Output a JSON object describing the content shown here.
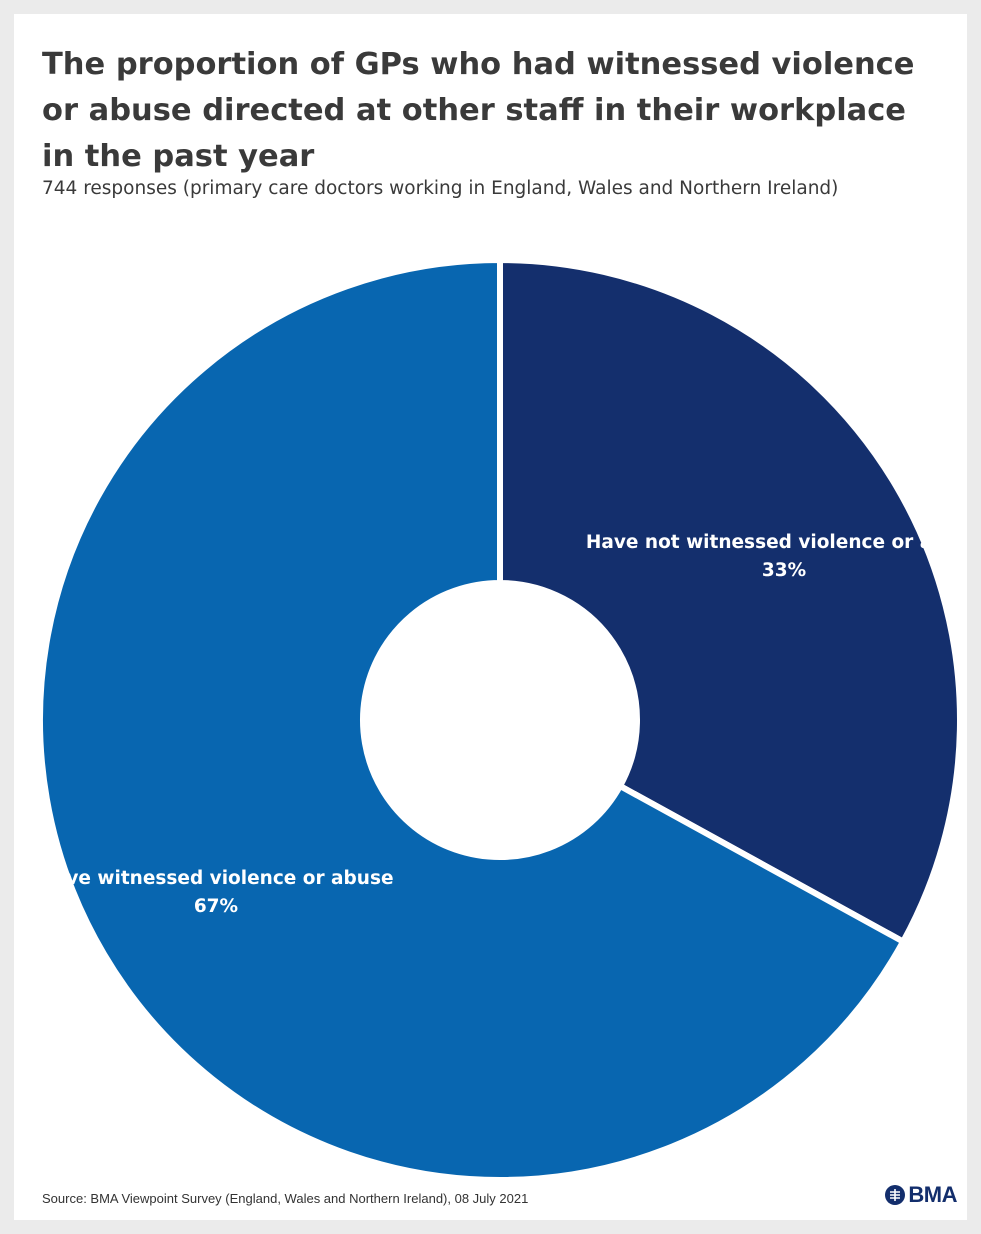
{
  "chart_data": {
    "type": "pie",
    "style": "donut",
    "title": "The proportion of GPs who had witnessed violence or abuse directed at other staff in their workplace in the past year",
    "subtitle": "744 responses (primary care doctors working in England, Wales and Northern Ireland)",
    "slices": [
      {
        "label": "Have not witnessed violence or abuse",
        "value": 33,
        "display": "33%",
        "color": "#142f6d"
      },
      {
        "label": "Have witnessed violence or abuse",
        "value": 67,
        "display": "67%",
        "color": "#0866b0"
      }
    ],
    "legend": "none",
    "labels": "on-slice"
  },
  "source": "Source: BMA Viewpoint Survey (England, Wales and Northern Ireland), 08 July 2021",
  "logo": {
    "text": "BMA",
    "icon": "bma-crest-icon",
    "color": "#132e6c"
  }
}
